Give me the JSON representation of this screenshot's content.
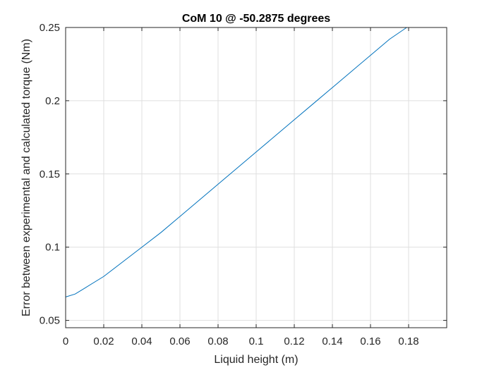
{
  "chart_data": {
    "type": "line",
    "title": "CoM 10 @ -50.2875 degrees",
    "xlabel": "Liquid height (m)",
    "ylabel": "Error between experimental and calculated torque (Nm)",
    "xlim": [
      0,
      0.2
    ],
    "ylim": [
      0.045,
      0.25
    ],
    "xticks": [
      0,
      0.02,
      0.04,
      0.06,
      0.08,
      0.1,
      0.12,
      0.14,
      0.16,
      0.18
    ],
    "xtick_labels": [
      "0",
      "0.02",
      "0.04",
      "0.06",
      "0.08",
      "0.1",
      "0.12",
      "0.14",
      "0.16",
      "0.18"
    ],
    "yticks": [
      0.05,
      0.1,
      0.15,
      0.2,
      0.25
    ],
    "ytick_labels": [
      "0.05",
      "0.1",
      "0.15",
      "0.2",
      "0.25"
    ],
    "grid": true,
    "series": [
      {
        "color": "#0072BD",
        "x": [
          0,
          0.005,
          0.01,
          0.02,
          0.03,
          0.04,
          0.05,
          0.06,
          0.07,
          0.08,
          0.09,
          0.1,
          0.11,
          0.12,
          0.13,
          0.14,
          0.15,
          0.16,
          0.17,
          0.179
        ],
        "y": [
          0.066,
          0.068,
          0.072,
          0.08,
          0.09,
          0.1,
          0.11,
          0.121,
          0.132,
          0.143,
          0.154,
          0.165,
          0.176,
          0.187,
          0.198,
          0.209,
          0.22,
          0.231,
          0.242,
          0.25
        ]
      }
    ]
  }
}
